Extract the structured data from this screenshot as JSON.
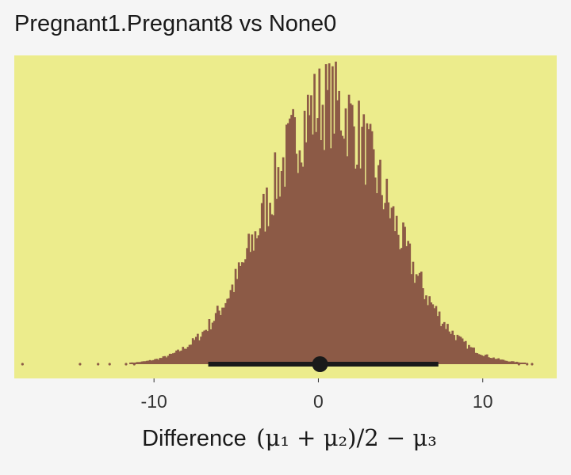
{
  "title": "Pregnant1.Pregnant8 vs None0",
  "colors": {
    "panel": "#ecec8c",
    "page": "#f5f5f5",
    "histogram": "#8c5a46",
    "interval": "#1a1a1a"
  },
  "chart_data": {
    "type": "histogram",
    "title": "Pregnant1.Pregnant8 vs None0",
    "xlabel": {
      "prefix": "Difference",
      "formula": "(μ₁ + μ₂)/2 − μ₃"
    },
    "ylabel": "",
    "xlim": [
      -18.5,
      14.5
    ],
    "xticks": [
      -10,
      0,
      10
    ],
    "xtick_labels": [
      "-10",
      "0",
      "10"
    ],
    "grid": false,
    "distribution": {
      "center": 0.5,
      "sd": 3.7,
      "min": -18,
      "max": 13,
      "shape": "approximately normal"
    },
    "point_estimate": 0.1,
    "interval": [
      -6.7,
      7.3
    ]
  }
}
